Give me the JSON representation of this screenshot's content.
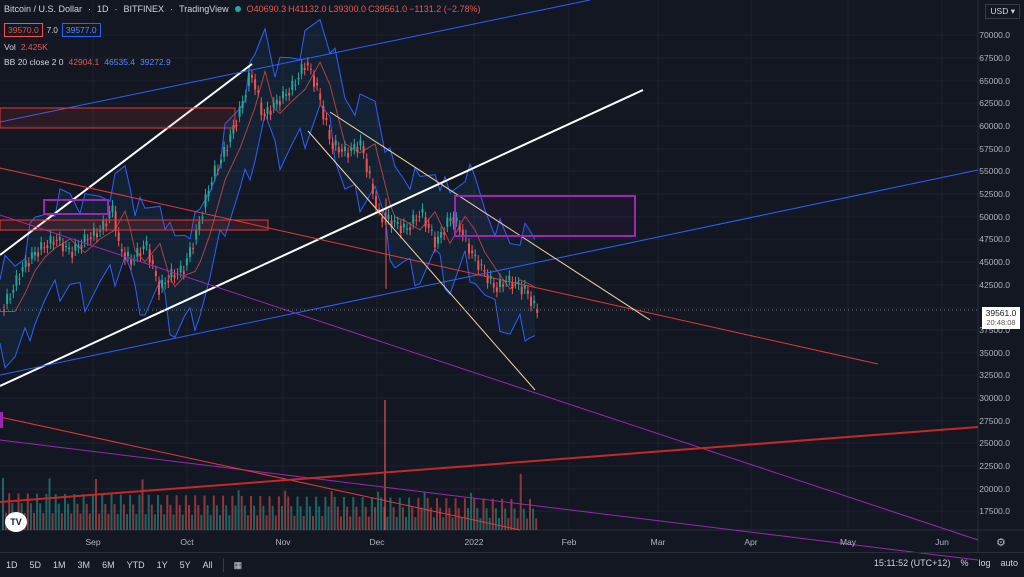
{
  "header": {
    "symbol": "Bitcoin / U.S. Dollar",
    "interval": "1D",
    "exchange": "BITFINEX",
    "source": "TradingView",
    "open": "O40690.3",
    "high": "H41132.0",
    "low": "L39300.0",
    "close": "C39561.0",
    "change": "−1131.2 (−2.78%)",
    "sell_price": "39570.0",
    "spread": "7.0",
    "buy_price": "39577.0"
  },
  "volume": {
    "label": "Vol",
    "value": "2.425K"
  },
  "bollinger": {
    "label": "BB 20 close 2 0",
    "basis": "42904.1",
    "upper": "46535.4",
    "lower": "39272.9"
  },
  "currency": "USD",
  "price_axis": [
    "70000.0",
    "67500.0",
    "65000.0",
    "62500.0",
    "60000.0",
    "57500.0",
    "55000.0",
    "52500.0",
    "50000.0",
    "47500.0",
    "45000.0",
    "42500.0",
    "37500.0",
    "35000.0",
    "32500.0",
    "30000.0",
    "27500.0",
    "25000.0",
    "22500.0",
    "20000.0",
    "17500.0"
  ],
  "current_price": {
    "value": "39561.0",
    "countdown": "20:48:08"
  },
  "time_axis": [
    "Sep",
    "Oct",
    "Nov",
    "Dec",
    "2022",
    "Feb",
    "Mar",
    "Apr",
    "May",
    "Jun"
  ],
  "toolbar": {
    "ranges": [
      "1D",
      "5D",
      "1M",
      "3M",
      "6M",
      "YTD",
      "1Y",
      "5Y",
      "All"
    ],
    "time": "15:11:52 (UTC+12)",
    "percent": "%",
    "log": "log",
    "auto": "auto"
  },
  "colors": {
    "bg": "#131722",
    "up": "#26a69a",
    "down": "#ef5350",
    "grid": "#1e222d"
  }
}
